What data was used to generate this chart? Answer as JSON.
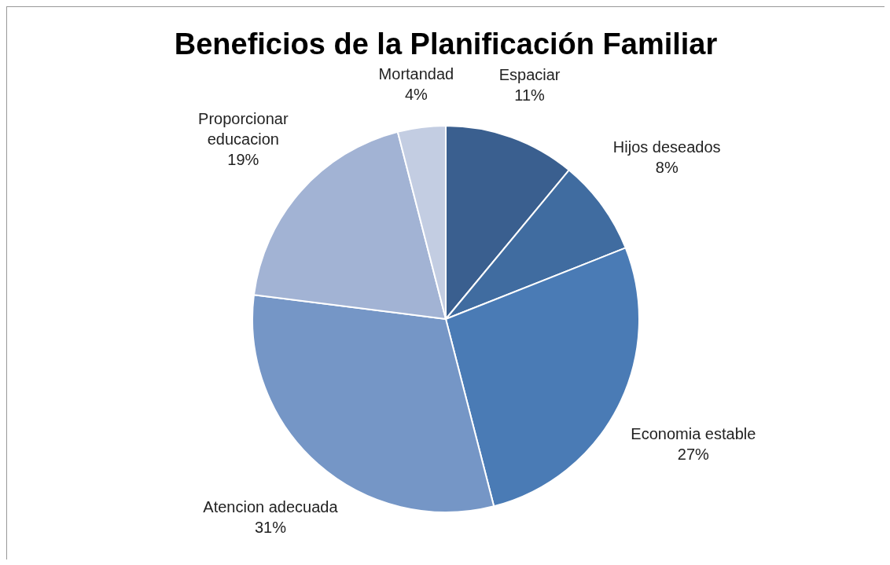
{
  "chart_data": {
    "type": "pie",
    "title": "Beneficios de la Planificación Familiar",
    "categories": [
      "Espaciar",
      "Hijos deseados",
      "Economia estable",
      "Atencion adecuada",
      "Proporcionar educacion",
      "Mortandad"
    ],
    "values": [
      11,
      8,
      27,
      31,
      19,
      4
    ],
    "colors": [
      "#3a5f8f",
      "#406ca0",
      "#4a7bb5",
      "#7596c6",
      "#a2b3d4",
      "#c3cde2"
    ],
    "value_labels": [
      "11%",
      "8%",
      "27%",
      "31%",
      "19%",
      "4%"
    ],
    "legend": false
  }
}
